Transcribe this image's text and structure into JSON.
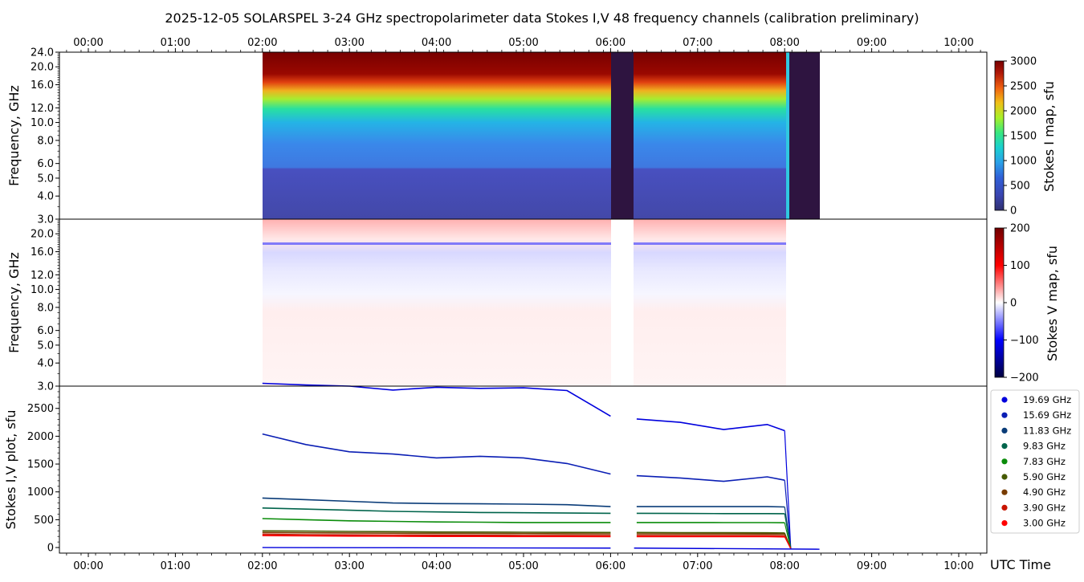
{
  "title": "2025-12-05  SOLARSPEL  3-24 GHz spectropolarimeter data   Stokes I,V   48 frequency channels   (calibration preliminary)",
  "time_ticks": [
    "00:00",
    "01:00",
    "02:00",
    "03:00",
    "04:00",
    "05:00",
    "06:00",
    "07:00",
    "08:00",
    "09:00",
    "10:00"
  ],
  "time_axis_label": "UTC Time",
  "chart_data": [
    {
      "type": "heatmap",
      "name": "Stokes I map",
      "ylabel": "Frequency, GHz",
      "yticks": [
        "24.0",
        "20.0",
        "16.0",
        "12.0",
        "10.0",
        "8.0",
        "6.0",
        "5.0",
        "4.0",
        "3.0"
      ],
      "ylim": [
        3.0,
        24.0
      ],
      "colorbar_label": "Stokes I map, sfu",
      "colorbar_ticks": [
        "3000",
        "2500",
        "2000",
        "1500",
        "1000",
        "500",
        "0"
      ],
      "clim": [
        0,
        3000
      ],
      "data_range_hours": [
        2.0,
        8.4
      ],
      "gaps_hours": [
        [
          6.0,
          6.27
        ],
        [
          8.07,
          8.4
        ]
      ]
    },
    {
      "type": "heatmap",
      "name": "Stokes V map",
      "ylabel": "Frequency, GHz",
      "yticks": [
        "20.0",
        "16.0",
        "12.0",
        "10.0",
        "8.0",
        "6.0",
        "5.0",
        "4.0",
        "3.0"
      ],
      "ylim": [
        3.0,
        24.0
      ],
      "colorbar_label": "Stokes V map, sfu",
      "colorbar_ticks": [
        "200",
        "100",
        "0",
        "−100",
        "−200"
      ],
      "clim": [
        -200,
        200
      ]
    },
    {
      "type": "line",
      "name": "Stokes I,V plot",
      "ylabel": "Stokes I,V plot, sfu",
      "yticks": [
        "2500",
        "2000",
        "1500",
        "1000",
        "500",
        "0"
      ],
      "ylim": [
        -100,
        2900
      ],
      "x_hours": [
        2.0,
        2.5,
        3.0,
        3.5,
        4.0,
        4.5,
        5.0,
        5.5,
        6.0,
        6.3,
        6.8,
        7.3,
        7.8,
        8.0
      ],
      "series": [
        {
          "name": "19.69 GHz",
          "color": "#0000dd",
          "values": [
            2950,
            2920,
            2900,
            2830,
            2880,
            2860,
            2870,
            2820,
            2360,
            2310,
            2250,
            2120,
            2210,
            2100
          ]
        },
        {
          "name": "15.69 GHz",
          "color": "#0a1eb4",
          "values": [
            2040,
            1850,
            1720,
            1680,
            1610,
            1640,
            1610,
            1510,
            1320,
            1290,
            1250,
            1190,
            1270,
            1210
          ]
        },
        {
          "name": "11.83 GHz",
          "color": "#0a3c78",
          "values": [
            890,
            860,
            830,
            800,
            790,
            785,
            780,
            770,
            735,
            735,
            735,
            735,
            735,
            730
          ]
        },
        {
          "name": "9.83 GHz",
          "color": "#00644b",
          "values": [
            710,
            690,
            670,
            650,
            640,
            630,
            625,
            620,
            615,
            615,
            612,
            610,
            610,
            608
          ]
        },
        {
          "name": "7.83 GHz",
          "color": "#0a8c0a",
          "values": [
            520,
            500,
            480,
            470,
            460,
            455,
            450,
            450,
            450,
            450,
            450,
            448,
            448,
            445
          ]
        },
        {
          "name": "5.90 GHz",
          "color": "#465a00",
          "values": [
            300,
            295,
            290,
            285,
            280,
            278,
            275,
            272,
            270,
            270,
            268,
            266,
            265,
            262
          ]
        },
        {
          "name": "4.90 GHz",
          "color": "#783c00",
          "values": [
            270,
            265,
            262,
            258,
            255,
            252,
            250,
            248,
            246,
            246,
            245,
            244,
            243,
            240
          ]
        },
        {
          "name": "3.90 GHz",
          "color": "#c81400",
          "values": [
            240,
            232,
            228,
            225,
            222,
            220,
            218,
            218,
            216,
            216,
            215,
            214,
            214,
            210
          ]
        },
        {
          "name": "3.00 GHz",
          "color": "#ff0000",
          "values": [
            215,
            210,
            206,
            203,
            200,
            200,
            198,
            198,
            196,
            196,
            196,
            195,
            195,
            192
          ]
        }
      ],
      "legend_position": "right"
    }
  ]
}
